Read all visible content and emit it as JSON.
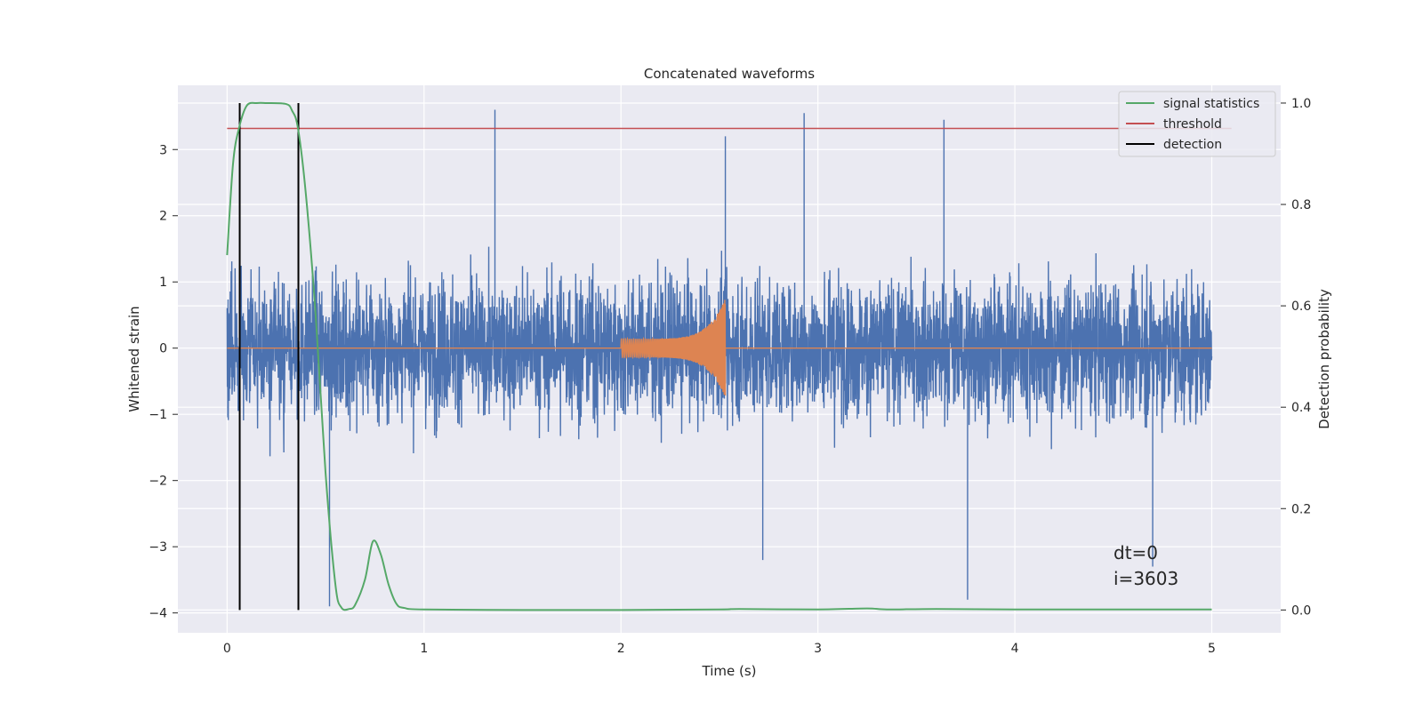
{
  "chart_data": {
    "type": "line",
    "title": "Concatenated waveforms",
    "xlabel": "Time (s)",
    "ylabel": "Whitened strain",
    "ylabel_right": "Detection probability",
    "xlim": [
      -0.25,
      5.35
    ],
    "ylim": [
      -4.3,
      3.97
    ],
    "ylim_right": [
      -0.045,
      1.035
    ],
    "x_ticks": [
      0,
      1,
      2,
      3,
      4,
      5
    ],
    "y_ticks": [
      -4,
      -3,
      -2,
      -1,
      0,
      1,
      2,
      3
    ],
    "y_right_ticks": [
      0.0,
      0.2,
      0.4,
      0.6,
      0.8,
      1.0
    ],
    "x_tick_labels": [
      "0",
      "1",
      "2",
      "3",
      "4",
      "5"
    ],
    "y_tick_labels": [
      "−4",
      "−3",
      "−2",
      "−1",
      "0",
      "1",
      "2",
      "3"
    ],
    "y_right_tick_labels": [
      "0.0",
      "0.2",
      "0.4",
      "0.6",
      "0.8",
      "1.0"
    ],
    "grid": true,
    "legend_position": "top-right",
    "colors": {
      "strain": "#4c72b0",
      "template": "#dd8452",
      "statistics": "#55a868",
      "threshold": "#c44e52",
      "detection": "#000000",
      "background": "#eaeaf2",
      "grid": "#ffffff"
    },
    "series": [
      {
        "name": "",
        "role": "whitened strain (noise)",
        "axis": "left",
        "x_range": [
          0,
          5
        ],
        "envelope_typical": [
          -1.0,
          1.0
        ],
        "notable_peaks": [
          [
            1.36,
            3.6
          ],
          [
            2.93,
            3.55
          ],
          [
            3.64,
            3.45
          ],
          [
            2.53,
            3.2
          ],
          [
            0.52,
            -3.9
          ],
          [
            3.76,
            -3.8
          ],
          [
            2.72,
            -3.2
          ],
          [
            4.7,
            -3.3
          ]
        ]
      },
      {
        "name": "",
        "role": "injected chirp template",
        "axis": "left",
        "x_start": 2.0,
        "x_end": 2.53,
        "peak_amplitude": 0.75
      },
      {
        "name": "signal statistics",
        "axis": "right",
        "x": [
          0.0,
          0.03,
          0.06,
          0.1,
          0.15,
          0.2,
          0.3,
          0.33,
          0.36,
          0.4,
          0.45,
          0.5,
          0.55,
          0.58,
          0.62,
          0.65,
          0.7,
          0.74,
          0.78,
          0.82,
          0.86,
          0.9,
          1.0,
          1.5,
          2.0,
          2.5,
          2.6,
          3.0,
          3.25,
          3.35,
          3.6,
          4.0,
          4.5,
          5.0
        ],
        "y": [
          0.7,
          0.88,
          0.95,
          0.995,
          1.0,
          1.0,
          0.998,
          0.985,
          0.95,
          0.82,
          0.58,
          0.27,
          0.05,
          0.005,
          0.002,
          0.01,
          0.06,
          0.135,
          0.11,
          0.05,
          0.012,
          0.004,
          0.001,
          0.0,
          0.0,
          0.001,
          0.002,
          0.001,
          0.003,
          0.001,
          0.002,
          0.001,
          0.001,
          0.001
        ]
      },
      {
        "name": "threshold",
        "axis": "right",
        "x": [
          0,
          5.1
        ],
        "y": [
          0.95,
          0.95
        ]
      },
      {
        "name": "detection",
        "axis": "right",
        "x_positions": [
          0.064,
          0.362
        ],
        "y_span": [
          0.0,
          1.0
        ]
      }
    ],
    "annotations": [
      "dt=0",
      "i=3603"
    ]
  }
}
